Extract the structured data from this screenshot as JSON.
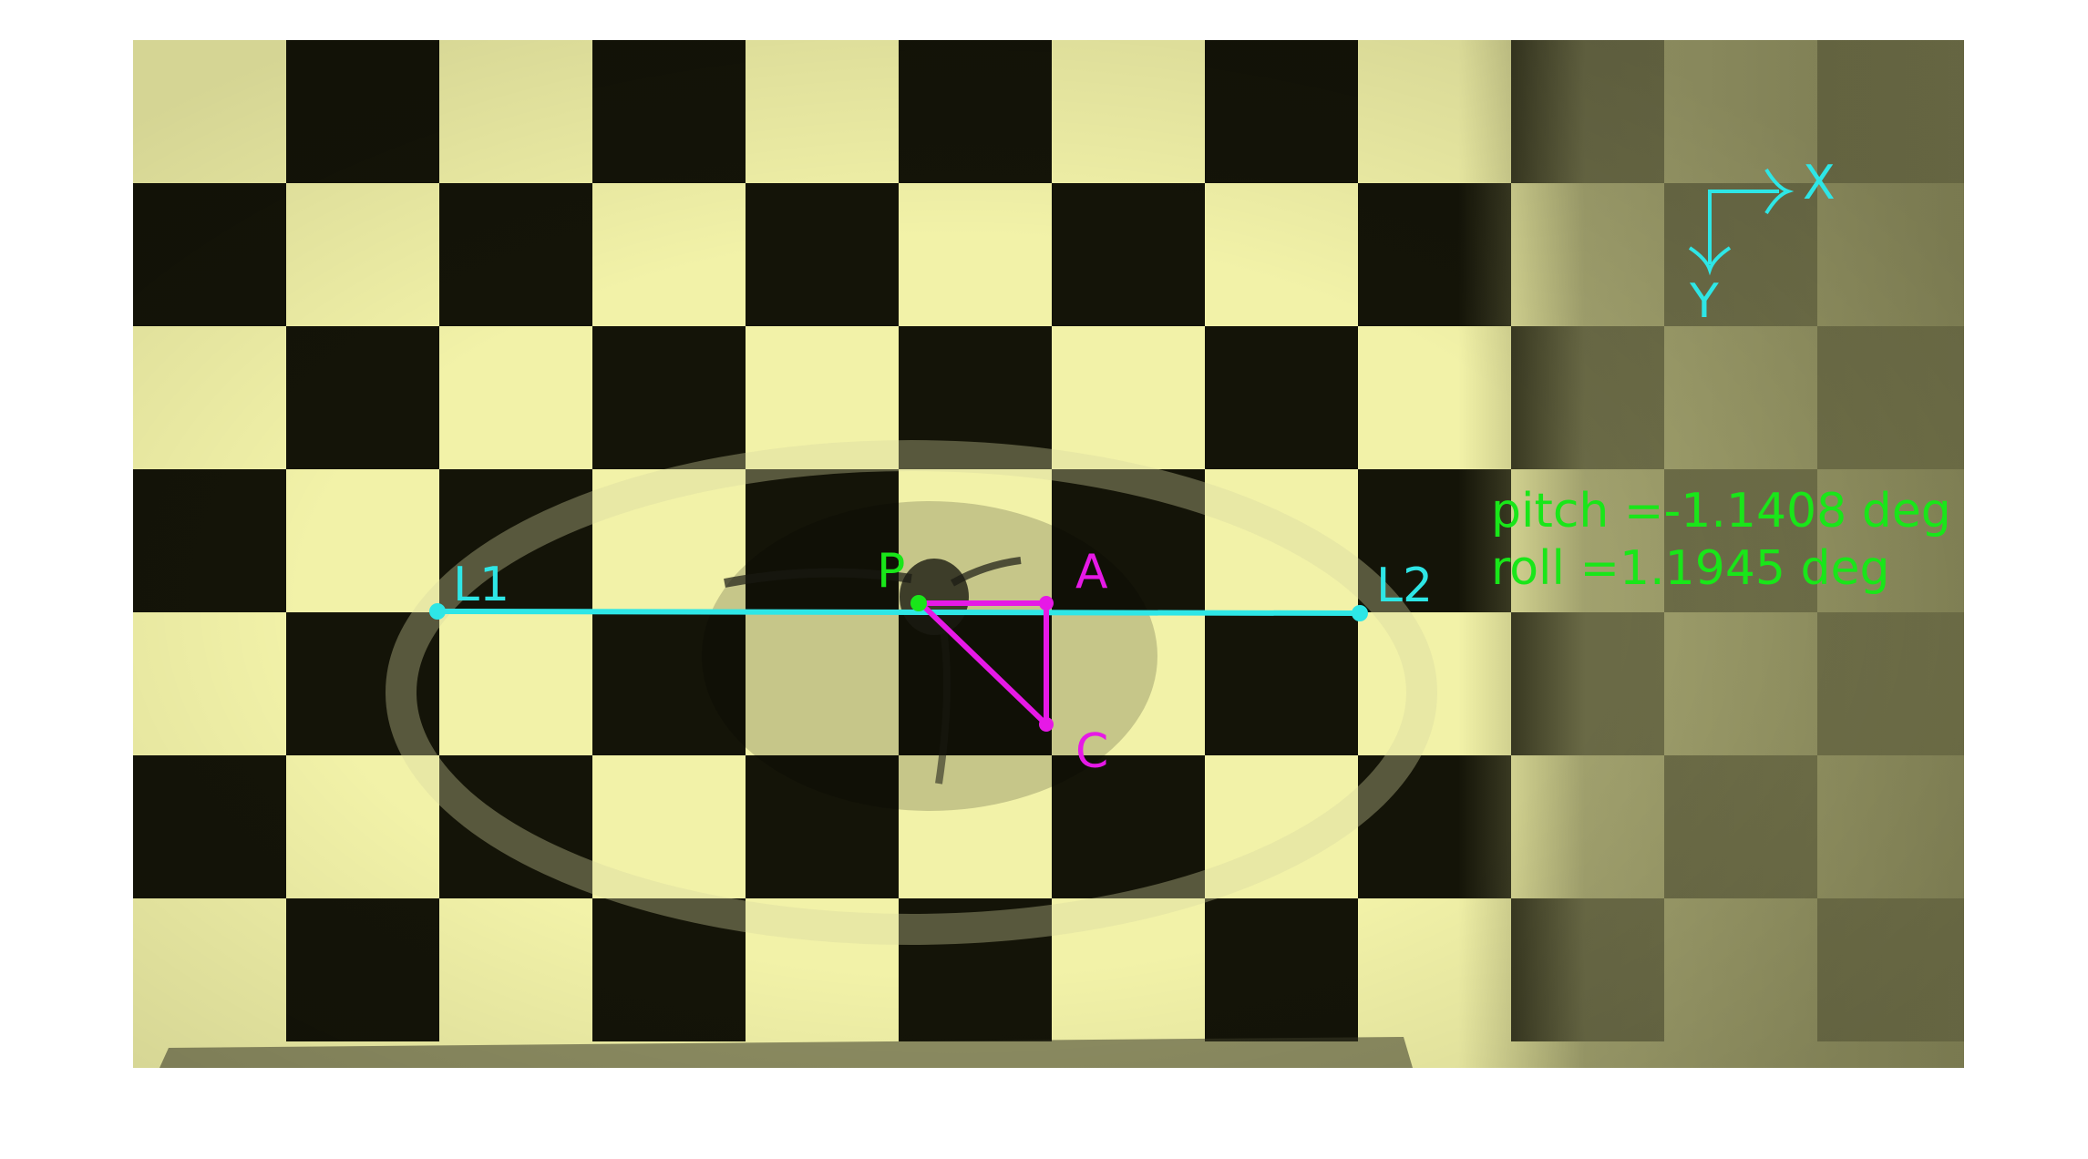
{
  "colors": {
    "background": "#ffffff",
    "light_square": "#f2f2a8",
    "dark_square": "#141408",
    "blurred_region": "#7f7f52",
    "line_cyan": "#2ee6e6",
    "triangle_magenta": "#e619e6",
    "point_green": "#19e619",
    "text_green": "#19e619"
  },
  "labels": {
    "L1": "L1",
    "L2": "L2",
    "P": "P",
    "A": "A",
    "C": "C",
    "axis_x": "X",
    "axis_y": "Y"
  },
  "readout": {
    "pitch": "pitch =-1.1408 deg",
    "roll": "roll =1.1945 deg"
  }
}
